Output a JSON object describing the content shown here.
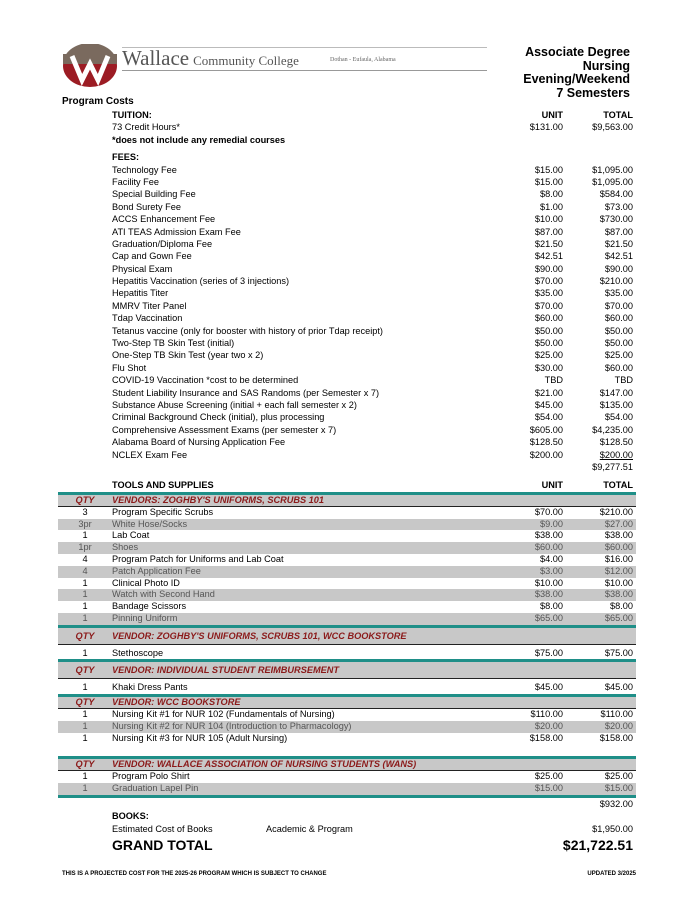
{
  "header": {
    "logo_letter": "W",
    "college_name_big": "Wallace",
    "college_name_small": "Community College",
    "location": "Dothan - Eufaula, Alabama",
    "program_lines": [
      "Associate Degree",
      "Nursing",
      "Evening/Weekend",
      "7 Semesters"
    ]
  },
  "section_title": "Program Costs",
  "tuition": {
    "heading": "TUITION:",
    "unit_label": "UNIT",
    "total_label": "TOTAL",
    "label": "73 Credit Hours*",
    "unit": "$131.00",
    "total": "$9,563.00",
    "note": "*does not include any remedial courses"
  },
  "fees": {
    "heading": "FEES:",
    "items": [
      {
        "label": "Technology Fee",
        "unit": "$15.00",
        "total": "$1,095.00"
      },
      {
        "label": "Facility Fee",
        "unit": "$15.00",
        "total": "$1,095.00"
      },
      {
        "label": "Special Building Fee",
        "unit": "$8.00",
        "total": "$584.00"
      },
      {
        "label": "Bond Surety Fee",
        "unit": "$1.00",
        "total": "$73.00"
      },
      {
        "label": "ACCS Enhancement Fee",
        "unit": "$10.00",
        "total": "$730.00"
      },
      {
        "label": "ATI TEAS Admission Exam Fee",
        "unit": "$87.00",
        "total": "$87.00"
      },
      {
        "label": "Graduation/Diploma Fee",
        "unit": "$21.50",
        "total": "$21.50"
      },
      {
        "label": "Cap and Gown Fee",
        "unit": "$42.51",
        "total": "$42.51"
      },
      {
        "label": "Physical Exam",
        "unit": "$90.00",
        "total": "$90.00"
      },
      {
        "label": "Hepatitis Vaccination (series of 3 injections)",
        "unit": "$70.00",
        "total": "$210.00"
      },
      {
        "label": "Hepatitis Titer",
        "unit": "$35.00",
        "total": "$35.00"
      },
      {
        "label": "MMRV Titer Panel",
        "unit": "$70.00",
        "total": "$70.00"
      },
      {
        "label": "Tdap Vaccination",
        "unit": "$60.00",
        "total": "$60.00"
      },
      {
        "label": "Tetanus vaccine (only for booster with history of prior Tdap receipt)",
        "unit": "$50.00",
        "total": "$50.00"
      },
      {
        "label": "Two-Step TB Skin Test (initial)",
        "unit": "$50.00",
        "total": "$50.00"
      },
      {
        "label": "One-Step TB Skin Test (year two x 2)",
        "unit": "$25.00",
        "total": "$25.00"
      },
      {
        "label": "Flu Shot",
        "unit": "$30.00",
        "total": "$60.00"
      },
      {
        "label": "COVID-19 Vaccination *cost to be determined",
        "unit": "TBD",
        "total": "TBD"
      },
      {
        "label": "Student Liability Insurance and SAS Randoms (per Semester x 7)",
        "unit": "$21.00",
        "total": "$147.00"
      },
      {
        "label": "Substance Abuse Screening (initial + each fall semester x 2)",
        "unit": "$45.00",
        "total": "$135.00"
      },
      {
        "label": "Criminal Background Check (initial), plus processing",
        "unit": "$54.00",
        "total": "$54.00"
      },
      {
        "label": "Comprehensive Assessment Exams (per semester x 7)",
        "unit": "$605.00",
        "total": "$4,235.00"
      },
      {
        "label": "Alabama Board of Nursing Application Fee",
        "unit": "$128.50",
        "total": "$128.50"
      },
      {
        "label": "NCLEX Exam Fee",
        "unit": "$200.00",
        "total": "$200.00"
      }
    ],
    "subtotal": "$9,277.51"
  },
  "tools": {
    "heading": "TOOLS AND SUPPLIES",
    "unit_label": "UNIT",
    "total_label": "TOTAL",
    "qty_label": "QTY",
    "groups": [
      {
        "vendor": "VENDORS:  ZOGHBY'S UNIFORMS, SCRUBS 101",
        "items": [
          {
            "qty": "3",
            "label": "Program Specific Scrubs",
            "unit": "$70.00",
            "total": "$210.00",
            "shade": "white"
          },
          {
            "qty": "3pr",
            "label": "White Hose/Socks",
            "unit": "$9.00",
            "total": "$27.00",
            "shade": "gray"
          },
          {
            "qty": "1",
            "label": "Lab Coat",
            "unit": "$38.00",
            "total": "$38.00",
            "shade": "white"
          },
          {
            "qty": "1pr",
            "label": "Shoes",
            "unit": "$60.00",
            "total": "$60.00",
            "shade": "gray"
          },
          {
            "qty": "4",
            "label": "Program Patch for Uniforms and Lab Coat",
            "unit": "$4.00",
            "total": "$16.00",
            "shade": "white"
          },
          {
            "qty": "4",
            "label": "Patch Application Fee",
            "unit": "$3.00",
            "total": "$12.00",
            "shade": "gray"
          },
          {
            "qty": "1",
            "label": "Clinical Photo ID",
            "unit": "$10.00",
            "total": "$10.00",
            "shade": "white"
          },
          {
            "qty": "1",
            "label": "Watch with Second Hand",
            "unit": "$38.00",
            "total": "$38.00",
            "shade": "gray"
          },
          {
            "qty": "1",
            "label": "Bandage Scissors",
            "unit": "$8.00",
            "total": "$8.00",
            "shade": "white"
          },
          {
            "qty": "1",
            "label": "Pinning Uniform",
            "unit": "$65.00",
            "total": "$65.00",
            "shade": "gray"
          }
        ]
      },
      {
        "vendor": "VENDOR: ZOGHBY'S UNIFORMS, SCRUBS 101, WCC BOOKSTORE",
        "tall": true,
        "items": [
          {
            "qty": "1",
            "label": "Stethoscope",
            "unit": "$75.00",
            "total": "$75.00",
            "shade": "white"
          }
        ]
      },
      {
        "vendor": "VENDOR: INDIVIDUAL STUDENT REIMBURSEMENT",
        "tall": true,
        "items": [
          {
            "qty": "1",
            "label": "Khaki Dress Pants",
            "unit": "$45.00",
            "total": "$45.00",
            "shade": "white"
          }
        ]
      },
      {
        "vendor": "VENDOR:  WCC BOOKSTORE",
        "items": [
          {
            "qty": "1",
            "label": "Nursing Kit #1 for NUR 102 (Fundamentals of Nursing)",
            "unit": "$110.00",
            "total": "$110.00",
            "shade": "white"
          },
          {
            "qty": "1",
            "label": "Nursing Kit #2 for NUR 104 (Introduction to Pharmacology)",
            "unit": "$20.00",
            "total": "$20.00",
            "shade": "gray"
          },
          {
            "qty": "1",
            "label": "Nursing Kit #3 for NUR 105 (Adult Nursing)",
            "unit": "$158.00",
            "total": "$158.00",
            "shade": "white"
          },
          {
            "qty": "",
            "label": "",
            "unit": "",
            "total": "",
            "shade": "white"
          }
        ]
      },
      {
        "vendor": "VENDOR:  WALLACE ASSOCIATION OF NURSING STUDENTS (WANS)",
        "items": [
          {
            "qty": "1",
            "label": "Program Polo Shirt",
            "unit": "$25.00",
            "total": "$25.00",
            "shade": "white"
          },
          {
            "qty": "1",
            "label": "Graduation Lapel Pin",
            "unit": "$15.00",
            "total": "$15.00",
            "shade": "gray"
          }
        ]
      }
    ],
    "subtotal": "$932.00"
  },
  "books": {
    "heading": "BOOKS:",
    "label": "Estimated Cost of Books",
    "category": "Academic & Program",
    "total": "$1,950.00"
  },
  "grand_total": {
    "label": "GRAND TOTAL",
    "value": "$21,722.51"
  },
  "footer": {
    "disclaimer": "THIS IS A PROJECTED COST FOR THE 2025-26 PROGRAM WHICH IS SUBJECT TO CHANGE",
    "updated": "UPDATED 3/2025"
  },
  "colors": {
    "teal_rule": "#1f8f88",
    "vendor_text": "#8b1a1a",
    "shaded_row": "#c8c8c8",
    "logo_red": "#9c1c24",
    "logo_brown": "#7a6a5e"
  }
}
